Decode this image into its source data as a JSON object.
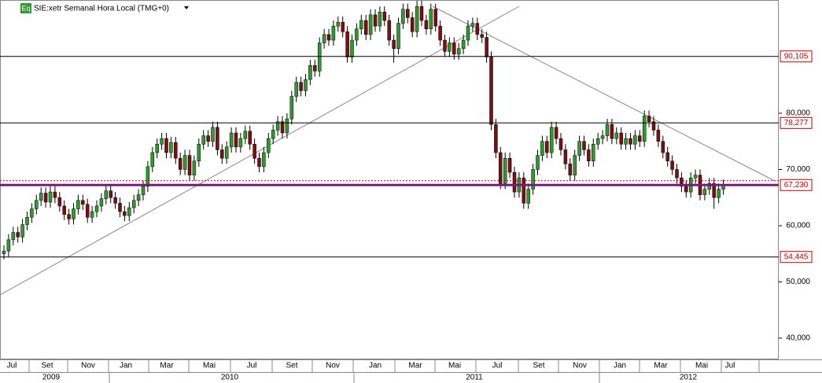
{
  "chart_data": {
    "type": "candlestick",
    "title": "SIE:xetr Semanal Hora Local (TMG+0)",
    "icon": "Eq",
    "colors": {
      "up": "#2f9b2f",
      "down": "#7b0f14",
      "level": "#000000",
      "support": "#7a1a7a",
      "dotted": "#c00000"
    },
    "ylim": [
      36.22,
      100.14
    ],
    "yticks": [
      {
        "value": 40,
        "label": "40,000"
      },
      {
        "value": 50,
        "label": "50,000"
      },
      {
        "value": 60,
        "label": "60,000"
      },
      {
        "value": 70,
        "label": "70,000"
      },
      {
        "value": 80,
        "label": "80,000"
      }
    ],
    "levels": [
      {
        "value": 90.105,
        "label": "90,105"
      },
      {
        "value": 78.277,
        "label": "78,277"
      },
      {
        "value": 67.23,
        "label": "67,230"
      },
      {
        "value": 54.445,
        "label": "54,445"
      }
    ],
    "dotted_level": 68.0,
    "months": [
      "Jul",
      "Set",
      "Nov",
      "Jan",
      "Mar",
      "Mai",
      "Jul",
      "Set",
      "Nov",
      "Jan",
      "Mar",
      "Mai",
      "Jul",
      "Set",
      "Nov",
      "Jan",
      "Mar",
      "Mai",
      "Jul"
    ],
    "years": [
      "2009",
      "2010",
      "2011",
      "2012"
    ],
    "open": [
      55.0,
      55.5,
      57.5,
      58.8,
      58.0,
      60.2,
      61.5,
      63.0,
      64.5,
      65.8,
      64.2,
      66.0,
      65.0,
      63.5,
      62.0,
      61.2,
      63.0,
      64.5,
      63.8,
      61.5,
      62.5,
      63.5,
      64.8,
      66.2,
      65.0,
      64.0,
      62.5,
      61.8,
      63.2,
      64.5,
      65.5,
      67.0,
      70.5,
      73.0,
      74.5,
      75.5,
      73.0,
      74.8,
      72.0,
      70.0,
      72.5,
      69.0,
      71.5,
      74.5,
      76.0,
      75.0,
      77.5,
      73.5,
      72.0,
      74.0,
      76.5,
      74.0,
      75.5,
      76.8,
      74.5,
      72.0,
      70.5,
      73.0,
      75.5,
      77.0,
      78.5,
      76.5,
      79.0,
      83.0,
      85.5,
      84.0,
      86.0,
      88.5,
      87.5,
      92.5,
      94.0,
      93.0,
      95.5,
      96.2,
      94.5,
      90.0,
      93.0,
      95.0,
      96.5,
      94.0,
      97.5,
      95.5,
      98.0,
      96.5,
      93.0,
      91.5,
      96.0,
      98.5,
      97.0,
      94.5,
      99.0,
      96.5,
      95.0,
      98.5,
      95.5,
      93.0,
      91.0,
      92.5,
      90.5,
      91.5,
      93.0,
      95.5,
      96.0,
      94.0,
      93.5,
      90.0,
      78.0,
      73.0,
      67.5,
      72.0,
      69.5,
      66.0,
      68.5,
      64.0,
      66.5,
      70.0,
      72.5,
      75.0,
      73.0,
      77.5,
      75.5,
      73.5,
      71.0,
      69.0,
      72.5,
      75.0,
      73.5,
      71.5,
      74.5,
      75.5,
      76.0,
      78.0,
      75.5,
      76.5,
      74.5,
      75.5,
      74.5,
      76.0,
      75.0,
      79.5,
      78.5,
      77.0,
      75.0,
      73.0,
      71.5,
      70.0,
      68.5,
      67.0,
      66.0,
      68.5,
      69.0,
      65.5,
      66.5,
      67.5,
      65.0,
      66.5
    ],
    "high": [
      56.5,
      58.5,
      59.8,
      59.8,
      61.2,
      62.5,
      64.0,
      65.5,
      66.8,
      66.8,
      67.0,
      67.0,
      66.0,
      64.5,
      63.0,
      64.0,
      65.5,
      65.5,
      64.8,
      63.5,
      64.5,
      65.8,
      67.2,
      67.2,
      66.0,
      65.0,
      63.5,
      64.2,
      65.5,
      66.5,
      68.0,
      71.5,
      74.0,
      75.5,
      76.5,
      76.5,
      75.8,
      75.8,
      73.0,
      73.5,
      73.5,
      72.5,
      75.5,
      77.0,
      77.0,
      78.5,
      78.5,
      74.5,
      75.0,
      77.5,
      77.5,
      76.5,
      77.8,
      77.8,
      75.5,
      73.0,
      74.0,
      76.5,
      78.0,
      79.5,
      79.5,
      80.0,
      84.0,
      86.5,
      86.5,
      87.0,
      89.5,
      89.5,
      93.5,
      95.0,
      95.0,
      96.5,
      97.2,
      97.2,
      95.5,
      94.0,
      96.0,
      97.5,
      97.5,
      98.5,
      98.5,
      99.0,
      99.0,
      97.5,
      94.0,
      97.0,
      99.5,
      99.5,
      98.0,
      100.0,
      100.0,
      97.5,
      99.5,
      99.5,
      96.5,
      94.0,
      93.5,
      93.5,
      92.5,
      94.0,
      96.5,
      97.0,
      97.0,
      95.0,
      94.5,
      91.0,
      79.0,
      74.0,
      73.0,
      73.0,
      70.5,
      69.5,
      69.5,
      67.5,
      71.0,
      73.5,
      76.0,
      76.0,
      78.5,
      78.5,
      76.5,
      74.5,
      72.0,
      73.5,
      76.0,
      76.0,
      74.5,
      75.5,
      76.5,
      77.0,
      79.0,
      79.0,
      77.5,
      77.5,
      76.5,
      76.5,
      77.0,
      77.0,
      80.5,
      80.5,
      79.5,
      78.0,
      76.0,
      74.0,
      72.5,
      71.0,
      69.5,
      68.0,
      69.5,
      70.0,
      70.0,
      67.5,
      68.5,
      68.5,
      67.5,
      68.2
    ],
    "low": [
      54.0,
      54.5,
      56.5,
      57.0,
      57.0,
      59.2,
      60.5,
      62.0,
      63.5,
      63.2,
      63.2,
      64.0,
      62.5,
      61.0,
      60.2,
      60.2,
      62.0,
      62.8,
      60.5,
      60.5,
      61.5,
      62.5,
      63.8,
      64.0,
      63.0,
      61.5,
      60.8,
      60.8,
      62.2,
      63.5,
      64.5,
      66.0,
      69.5,
      72.0,
      73.5,
      72.0,
      72.0,
      71.0,
      69.0,
      69.0,
      68.0,
      68.0,
      70.5,
      73.5,
      74.0,
      74.0,
      72.5,
      71.0,
      71.0,
      73.0,
      73.0,
      73.0,
      74.5,
      73.5,
      71.0,
      69.5,
      69.5,
      72.0,
      74.5,
      76.0,
      75.5,
      75.5,
      78.0,
      82.0,
      83.0,
      83.0,
      85.0,
      86.5,
      86.5,
      91.5,
      92.0,
      92.0,
      94.5,
      93.5,
      89.0,
      89.0,
      92.0,
      94.0,
      93.0,
      93.0,
      94.5,
      94.5,
      95.5,
      92.0,
      89.0,
      90.5,
      95.0,
      96.0,
      93.5,
      93.5,
      95.5,
      94.0,
      94.0,
      94.5,
      92.0,
      90.0,
      90.0,
      89.5,
      89.5,
      90.5,
      92.0,
      94.5,
      93.0,
      92.5,
      89.0,
      77.0,
      72.0,
      66.5,
      66.5,
      68.5,
      65.0,
      65.0,
      63.0,
      63.0,
      65.5,
      69.0,
      71.5,
      72.0,
      72.0,
      74.5,
      72.5,
      70.0,
      68.0,
      68.0,
      71.5,
      72.5,
      70.5,
      70.5,
      73.5,
      74.5,
      75.0,
      74.5,
      74.5,
      73.5,
      73.5,
      73.5,
      73.5,
      74.0,
      74.0,
      77.5,
      76.0,
      74.0,
      72.0,
      70.5,
      69.0,
      67.5,
      66.0,
      65.0,
      65.0,
      67.5,
      64.5,
      64.5,
      65.5,
      63.0,
      64.0,
      65.5
    ],
    "close": [
      55.5,
      57.5,
      58.8,
      58.0,
      60.2,
      61.5,
      63.0,
      64.5,
      65.8,
      64.2,
      66.0,
      65.0,
      63.5,
      62.0,
      61.2,
      63.0,
      64.5,
      63.8,
      61.5,
      62.5,
      63.5,
      64.8,
      66.2,
      65.0,
      64.0,
      62.5,
      61.8,
      63.2,
      64.5,
      65.5,
      67.0,
      70.5,
      73.0,
      74.5,
      75.5,
      73.0,
      74.8,
      72.0,
      70.0,
      72.5,
      69.0,
      71.5,
      74.5,
      76.0,
      75.0,
      77.5,
      73.5,
      72.0,
      74.0,
      76.5,
      74.0,
      75.5,
      76.8,
      74.5,
      72.0,
      70.5,
      73.0,
      75.5,
      77.0,
      78.5,
      76.5,
      79.0,
      83.0,
      85.5,
      84.0,
      86.0,
      88.5,
      87.5,
      92.5,
      94.0,
      93.0,
      95.5,
      96.2,
      94.5,
      90.0,
      93.0,
      95.0,
      96.5,
      94.0,
      97.5,
      95.5,
      98.0,
      96.5,
      93.0,
      91.5,
      96.0,
      98.5,
      97.0,
      94.5,
      99.0,
      96.5,
      95.0,
      98.5,
      95.5,
      93.0,
      91.0,
      92.5,
      90.5,
      91.5,
      93.0,
      95.5,
      96.0,
      94.0,
      93.5,
      90.0,
      78.0,
      73.0,
      67.5,
      72.0,
      69.5,
      66.0,
      68.5,
      64.0,
      66.5,
      70.0,
      72.5,
      75.0,
      73.0,
      77.5,
      75.5,
      73.5,
      71.0,
      69.0,
      72.5,
      75.0,
      73.5,
      71.5,
      74.5,
      75.5,
      76.0,
      78.0,
      75.5,
      76.5,
      74.5,
      75.5,
      74.5,
      76.0,
      75.0,
      79.5,
      78.5,
      77.0,
      75.0,
      73.0,
      71.5,
      70.0,
      68.5,
      67.0,
      66.0,
      68.5,
      69.0,
      65.5,
      66.5,
      67.5,
      65.0,
      66.5,
      67.2
    ]
  }
}
